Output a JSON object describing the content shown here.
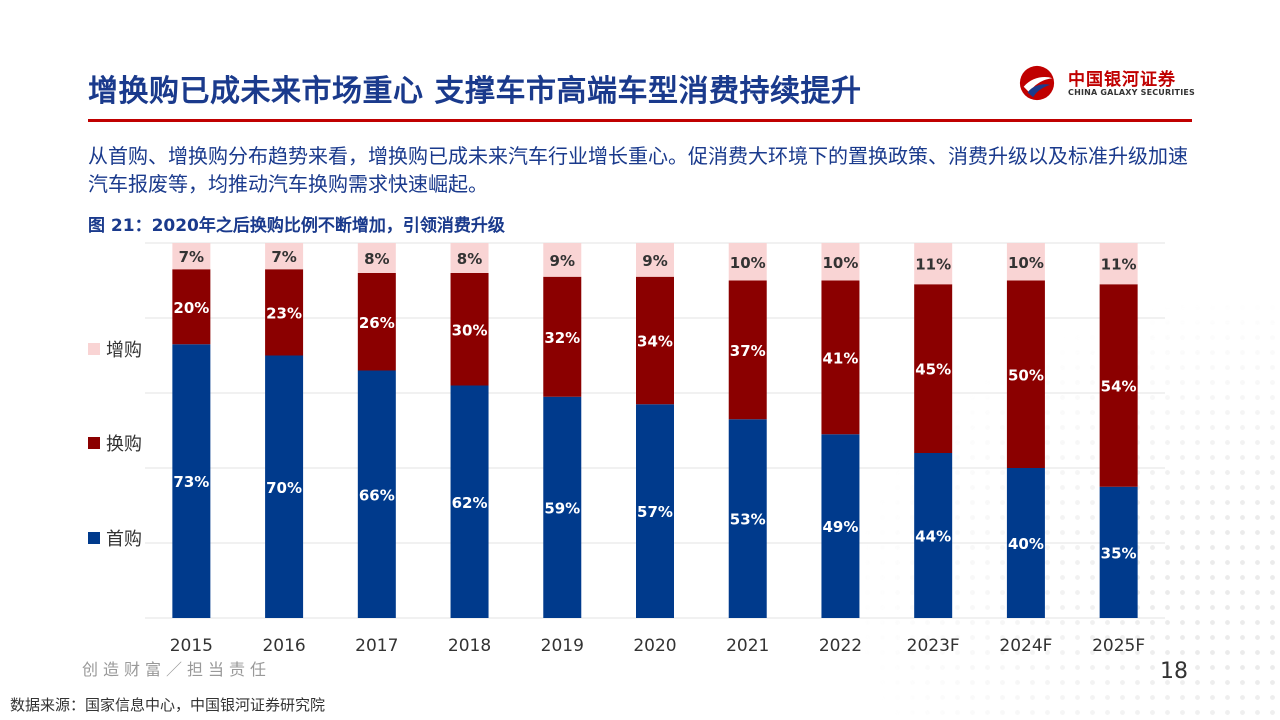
{
  "header": {
    "title": "增换购已成未来市场重心 支撑车市高端车型消费持续提升",
    "logo_cn": "中国银河证券",
    "logo_en": "CHINA GALAXY SECURITIES"
  },
  "summary": "从首购、增换购分布趋势来看，增换购已成未来汽车行业增长重心。促消费大环境下的置换政策、消费升级以及标准升级加速汽车报废等，均推动汽车换购需求快速崛起。",
  "figure_caption": "图 21：2020年之后换购比例不断增加，引领消费升级",
  "chart_data": {
    "type": "bar",
    "stacked": true,
    "percent": true,
    "title": "图 21：2020年之后换购比例不断增加，引领消费升级",
    "categories": [
      "2015",
      "2016",
      "2017",
      "2018",
      "2019",
      "2020",
      "2021",
      "2022",
      "2023F",
      "2024F",
      "2025F"
    ],
    "series": [
      {
        "name": "首购",
        "color": "#003a8c",
        "values": [
          73,
          70,
          66,
          62,
          59,
          57,
          53,
          49,
          44,
          40,
          35
        ],
        "labels": [
          "73%",
          "70%",
          "66%",
          "62%",
          "59%",
          "57%",
          "53%",
          "49%",
          "44%",
          "40%",
          "35%"
        ]
      },
      {
        "name": "换购",
        "color": "#8b0000",
        "values": [
          20,
          23,
          26,
          30,
          32,
          34,
          37,
          41,
          45,
          50,
          54
        ],
        "labels": [
          "20%",
          "23%",
          "26%",
          "30%",
          "32%",
          "34%",
          "37%",
          "41%",
          "45%",
          "50%",
          "54%"
        ]
      },
      {
        "name": "增购",
        "color": "#f9d4d4",
        "values": [
          7,
          7,
          8,
          8,
          9,
          9,
          10,
          10,
          11,
          10,
          11
        ],
        "labels": [
          "7%",
          "7%",
          "8%",
          "8%",
          "9%",
          "9%",
          "10%",
          "10%",
          "11%",
          "10%",
          "11%"
        ]
      }
    ],
    "ylim": [
      0,
      100
    ],
    "grid": true,
    "legend": "left"
  },
  "legend": {
    "items": [
      {
        "label": "增购",
        "color": "#f9d4d4"
      },
      {
        "label": "换购",
        "color": "#8b0000"
      },
      {
        "label": "首购",
        "color": "#003a8c"
      }
    ]
  },
  "footer": {
    "slogan": "创造财富／担当责任",
    "page_number": "18",
    "source": "数据来源：国家信息中心，中国银河证券研究院"
  }
}
